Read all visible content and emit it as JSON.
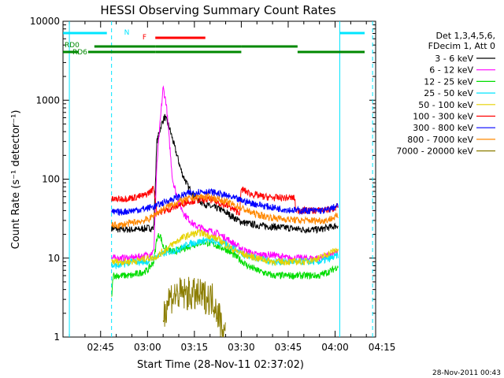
{
  "chart_data": {
    "type": "line",
    "title": "HESSI Observing Summary Count Rates",
    "xlabel": "Start Time (28-Nov-11 02:37:02)",
    "ylabel": "Count Rate (s⁻¹ detector⁻¹)",
    "y_scale": "log",
    "ylim": [
      1,
      10000
    ],
    "xlim_minutes": [
      -2.03,
      97.97
    ],
    "x_ticks": [
      {
        "t": 10,
        "label": "02:45"
      },
      {
        "t": 25,
        "label": "03:00"
      },
      {
        "t": 40,
        "label": "03:15"
      },
      {
        "t": 55,
        "label": "03:30"
      },
      {
        "t": 70,
        "label": "03:45"
      },
      {
        "t": 85,
        "label": "04:00"
      },
      {
        "t": 100,
        "label": "04:15"
      }
    ],
    "y_ticks": [
      {
        "v": 1,
        "label": "1"
      },
      {
        "v": 10,
        "label": "10"
      },
      {
        "v": 100,
        "label": "100"
      },
      {
        "v": 1000,
        "label": "1000"
      },
      {
        "v": 10000,
        "label": "10000"
      }
    ],
    "legend_header": [
      "Det 1,3,4,5,6,",
      "FDecim 1, Att 0"
    ],
    "series": [
      {
        "name": "3 - 6 keV",
        "color": "#000000",
        "points": [
          [
            13.5,
            24
          ],
          [
            16,
            23
          ],
          [
            20,
            23
          ],
          [
            22,
            23
          ],
          [
            25,
            24
          ],
          [
            27,
            24
          ],
          [
            28,
            300
          ],
          [
            29.5,
            500
          ],
          [
            30.5,
            620
          ],
          [
            32,
            450
          ],
          [
            34,
            230
          ],
          [
            36,
            120
          ],
          [
            38,
            80
          ],
          [
            40,
            60
          ],
          [
            42,
            52
          ],
          [
            45,
            45
          ],
          [
            48,
            42
          ],
          [
            50,
            38
          ],
          [
            52,
            34
          ],
          [
            54,
            30
          ],
          [
            56,
            28
          ],
          [
            60,
            26
          ],
          [
            65,
            25
          ],
          [
            70,
            24
          ],
          [
            75,
            23
          ],
          [
            80,
            23
          ],
          [
            84,
            25
          ],
          [
            86,
            26
          ]
        ]
      },
      {
        "name": "6 - 12 keV",
        "color": "#ff00ff",
        "points": [
          [
            13.5,
            10
          ],
          [
            16,
            10
          ],
          [
            20,
            10
          ],
          [
            25,
            11
          ],
          [
            27,
            12
          ],
          [
            28,
            150
          ],
          [
            29,
            500
          ],
          [
            30,
            1450
          ],
          [
            31,
            900
          ],
          [
            32,
            300
          ],
          [
            33,
            100
          ],
          [
            35,
            50
          ],
          [
            37,
            35
          ],
          [
            40,
            26
          ],
          [
            45,
            22
          ],
          [
            48,
            20
          ],
          [
            50,
            18
          ],
          [
            54,
            14
          ],
          [
            57,
            12
          ],
          [
            60,
            11
          ],
          [
            65,
            11
          ],
          [
            70,
            10
          ],
          [
            75,
            10
          ],
          [
            80,
            10
          ],
          [
            84,
            11
          ],
          [
            86,
            12
          ]
        ]
      },
      {
        "name": "12 - 25 keV",
        "color": "#00dd00",
        "points": [
          [
            13.5,
            3
          ],
          [
            14,
            6
          ],
          [
            16,
            6
          ],
          [
            20,
            6
          ],
          [
            25,
            7
          ],
          [
            27,
            9
          ],
          [
            28,
            18
          ],
          [
            29,
            20
          ],
          [
            30,
            14
          ],
          [
            31,
            13
          ],
          [
            33,
            12
          ],
          [
            36,
            13
          ],
          [
            40,
            15
          ],
          [
            43,
            16
          ],
          [
            46,
            15
          ],
          [
            50,
            13
          ],
          [
            54,
            10
          ],
          [
            57,
            8
          ],
          [
            60,
            7
          ],
          [
            65,
            6
          ],
          [
            70,
            6
          ],
          [
            75,
            6
          ],
          [
            80,
            6
          ],
          [
            84,
            7
          ],
          [
            86,
            8
          ]
        ]
      },
      {
        "name": "25 - 50 keV",
        "color": "#00e5ff",
        "points": [
          [
            13.5,
            8
          ],
          [
            16,
            8
          ],
          [
            20,
            9
          ],
          [
            25,
            9
          ],
          [
            27,
            10
          ],
          [
            29,
            11
          ],
          [
            32,
            12
          ],
          [
            35,
            13
          ],
          [
            38,
            15
          ],
          [
            41,
            16
          ],
          [
            44,
            17
          ],
          [
            47,
            16
          ],
          [
            50,
            15
          ],
          [
            53,
            13
          ],
          [
            56,
            11
          ],
          [
            60,
            10
          ],
          [
            65,
            9
          ],
          [
            70,
            9
          ],
          [
            75,
            9
          ],
          [
            80,
            9
          ],
          [
            84,
            10
          ],
          [
            86,
            11
          ]
        ]
      },
      {
        "name": "50 - 100 keV",
        "color": "#e6d200",
        "points": [
          [
            13.5,
            9
          ],
          [
            16,
            9
          ],
          [
            20,
            9
          ],
          [
            25,
            10
          ],
          [
            27,
            10
          ],
          [
            30,
            12
          ],
          [
            33,
            15
          ],
          [
            36,
            18
          ],
          [
            39,
            20
          ],
          [
            42,
            21
          ],
          [
            45,
            19
          ],
          [
            48,
            17
          ],
          [
            52,
            13
          ],
          [
            56,
            11
          ],
          [
            60,
            10
          ],
          [
            65,
            9
          ],
          [
            70,
            9
          ],
          [
            75,
            9
          ],
          [
            80,
            10
          ],
          [
            84,
            12
          ],
          [
            86,
            13
          ]
        ]
      },
      {
        "name": "100 - 300 keV",
        "color": "#ff0000",
        "points": [
          [
            13.5,
            55
          ],
          [
            16,
            56
          ],
          [
            20,
            58
          ],
          [
            24,
            62
          ],
          [
            26,
            70
          ],
          [
            27,
            78
          ],
          [
            28,
            38
          ],
          [
            31,
            40
          ],
          [
            34,
            45
          ],
          [
            38,
            52
          ],
          [
            42,
            55
          ],
          [
            45,
            55
          ],
          [
            48,
            50
          ],
          [
            51,
            45
          ],
          [
            53,
            40
          ],
          [
            54.5,
            38
          ],
          [
            55,
            75
          ],
          [
            58,
            65
          ],
          [
            62,
            60
          ],
          [
            66,
            58
          ],
          [
            70,
            58
          ],
          [
            72,
            58
          ],
          [
            72.5,
            40
          ],
          [
            76,
            40
          ],
          [
            80,
            40
          ],
          [
            84,
            42
          ],
          [
            86,
            46
          ]
        ]
      },
      {
        "name": "300 - 800 keV",
        "color": "#0000ff",
        "points": [
          [
            13.5,
            38
          ],
          [
            16,
            38
          ],
          [
            20,
            40
          ],
          [
            24,
            42
          ],
          [
            27,
            45
          ],
          [
            30,
            50
          ],
          [
            34,
            58
          ],
          [
            38,
            66
          ],
          [
            42,
            70
          ],
          [
            46,
            68
          ],
          [
            50,
            62
          ],
          [
            54,
            55
          ],
          [
            58,
            50
          ],
          [
            62,
            46
          ],
          [
            66,
            43
          ],
          [
            70,
            41
          ],
          [
            74,
            40
          ],
          [
            78,
            40
          ],
          [
            82,
            40
          ],
          [
            84,
            43
          ],
          [
            86,
            46
          ]
        ]
      },
      {
        "name": "800 - 7000 keV",
        "color": "#ff8800",
        "points": [
          [
            13.5,
            26
          ],
          [
            16,
            26
          ],
          [
            20,
            28
          ],
          [
            24,
            30
          ],
          [
            26,
            32
          ],
          [
            27,
            35
          ],
          [
            30,
            42
          ],
          [
            34,
            50
          ],
          [
            38,
            56
          ],
          [
            42,
            60
          ],
          [
            46,
            58
          ],
          [
            50,
            52
          ],
          [
            54,
            45
          ],
          [
            58,
            38
          ],
          [
            62,
            34
          ],
          [
            66,
            32
          ],
          [
            70,
            31
          ],
          [
            74,
            30
          ],
          [
            78,
            30
          ],
          [
            82,
            30
          ],
          [
            84,
            32
          ],
          [
            86,
            34
          ]
        ]
      },
      {
        "name": "7000 - 20000 keV",
        "color": "#8b7d00",
        "points": [
          [
            30,
            1.8
          ],
          [
            31,
            2.5
          ],
          [
            32,
            3.2
          ],
          [
            34,
            3.4
          ],
          [
            36,
            3.5
          ],
          [
            38,
            3.5
          ],
          [
            40,
            3.4
          ],
          [
            42,
            3.3
          ],
          [
            44,
            3.2
          ],
          [
            46,
            3.0
          ],
          [
            47,
            2.4
          ],
          [
            48,
            1.8
          ],
          [
            49,
            1.3
          ],
          [
            50,
            1.0
          ]
        ]
      }
    ],
    "annotations": {
      "vertical_lines": [
        {
          "t": 0,
          "style": "solid"
        },
        {
          "t": 13.5,
          "style": "dashed"
        },
        {
          "t": 86.5,
          "style": "solid"
        },
        {
          "t": 97,
          "style": "dashed"
        }
      ],
      "flag_bars": [
        {
          "label": "N",
          "color": "#00e5ff",
          "level": "top",
          "segments": [
            [
              -2,
              12
            ],
            [
              86.5,
              97
            ]
          ]
        },
        {
          "label": "F",
          "color": "#ff0000",
          "level": "upper",
          "segments": [
            [
              27.5,
              43.5
            ]
          ]
        },
        {
          "label": "RD0",
          "color": "#008800",
          "level": "middle",
          "segments": [
            [
              8,
              27.5
            ],
            [
              27.5,
              55
            ],
            [
              55,
              73
            ]
          ]
        },
        {
          "label": "RD6",
          "color": "#008800",
          "level": "lower",
          "segments": [
            [
              -2,
              3
            ],
            [
              6,
              27.5
            ],
            [
              27.5,
              55
            ],
            [
              73,
              97
            ]
          ]
        }
      ]
    }
  },
  "footer_date": "28-Nov-2011 00:43"
}
